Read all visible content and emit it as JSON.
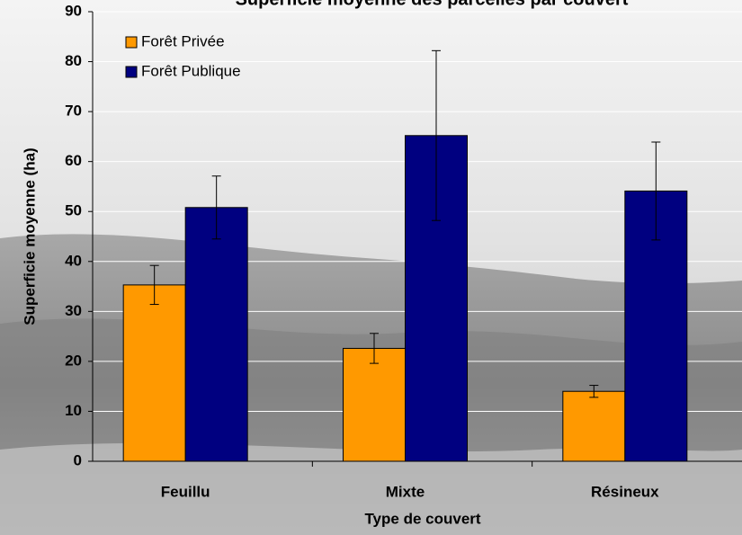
{
  "chart_data": {
    "type": "bar",
    "title": "Superficie moyenne des parcelles par couvert",
    "x_label": "Type de couvert",
    "y_label": "Superficie moyenne (ha)",
    "categories": [
      "Feuillu",
      "Mixte",
      "Résineux"
    ],
    "series": [
      {
        "name": "Forêt Privée",
        "color": "#ff9900",
        "values": [
          35.3,
          22.6,
          14.0
        ],
        "errors": [
          3.9,
          3.0,
          1.2
        ]
      },
      {
        "name": "Forêt Publique",
        "color": "#000080",
        "values": [
          50.8,
          65.2,
          54.1
        ],
        "errors": [
          6.3,
          17.0,
          9.8
        ]
      }
    ],
    "ylim": [
      0,
      90
    ],
    "yticks": [
      0,
      10,
      20,
      30,
      40,
      50,
      60,
      70,
      80,
      90
    ],
    "grid": true,
    "legend": "top-left"
  }
}
